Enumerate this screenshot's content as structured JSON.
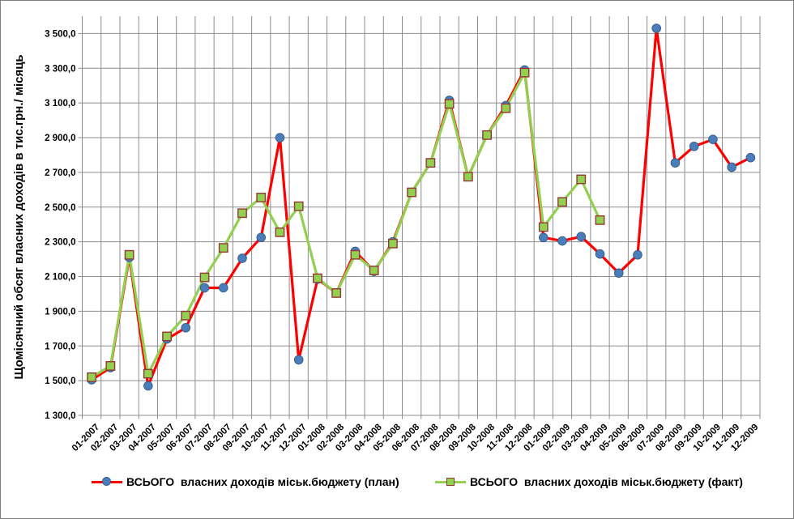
{
  "chart_data": {
    "type": "line",
    "title": "",
    "ylabel": "Щомісячний обсяг власних доходів в тис.грн./ місяць",
    "xlabel": "",
    "ylim": [
      1300,
      3600
    ],
    "ytick_step": 200,
    "ytick_labels": [
      "1 300,0",
      "1 500,0",
      "1 700,0",
      "1 900,0",
      "2 100,0",
      "2 300,0",
      "2 500,0",
      "2 700,0",
      "2 900,0",
      "3 100,0",
      "3 300,0",
      "3 500,0"
    ],
    "grid": true,
    "grid_color": "#8c8c8c",
    "axis_color": "#8c8c8c",
    "legend_position": "bottom",
    "categories": [
      "01-2007",
      "02-2007",
      "03-2007",
      "04-2007",
      "05-2007",
      "06-2007",
      "07-2007",
      "08-2007",
      "09-2007",
      "10-2007",
      "11-2007",
      "12-2007",
      "01-2008",
      "02-2008",
      "03-2008",
      "04-2008",
      "05-2008",
      "06-2008",
      "07-2008",
      "08-2008",
      "09-2008",
      "10-2008",
      "11-2008",
      "12-2008",
      "01-2009",
      "02-2009",
      "03-2009",
      "04-2009",
      "05-2009",
      "06-2009",
      "07-2009",
      "08-2009",
      "09-2009",
      "10-2009",
      "11-2009",
      "12-2009"
    ],
    "series": [
      {
        "name": "ВСЬОГО  власних доходів міськ.бюджету (план)",
        "line_color": "#ff0000",
        "marker": "circle",
        "marker_fill": "#4a7ebb",
        "marker_stroke": "#3a5f8b",
        "values": [
          1505,
          1575,
          2210,
          1470,
          1740,
          1805,
          2035,
          2035,
          2205,
          2325,
          2900,
          1620,
          2085,
          2005,
          2245,
          2130,
          2300,
          2585,
          2755,
          3115,
          2675,
          2915,
          3085,
          3290,
          2325,
          2305,
          2330,
          2230,
          2120,
          2225,
          3530,
          2755,
          2850,
          2890,
          2730,
          2785
        ]
      },
      {
        "name": "ВСЬОГО  власних доходів міськ.бюджету (факт)",
        "line_color": "#92d050",
        "marker": "square",
        "marker_fill": "#92d050",
        "marker_stroke": "#953735",
        "values": [
          1520,
          1585,
          2225,
          1540,
          1755,
          1875,
          2095,
          2265,
          2465,
          2555,
          2355,
          2505,
          2090,
          2005,
          2225,
          2135,
          2290,
          2585,
          2755,
          3095,
          2675,
          2915,
          3070,
          3275,
          2385,
          2530,
          2660,
          2425,
          null,
          null,
          null,
          null,
          null,
          null,
          null,
          null
        ]
      }
    ]
  }
}
